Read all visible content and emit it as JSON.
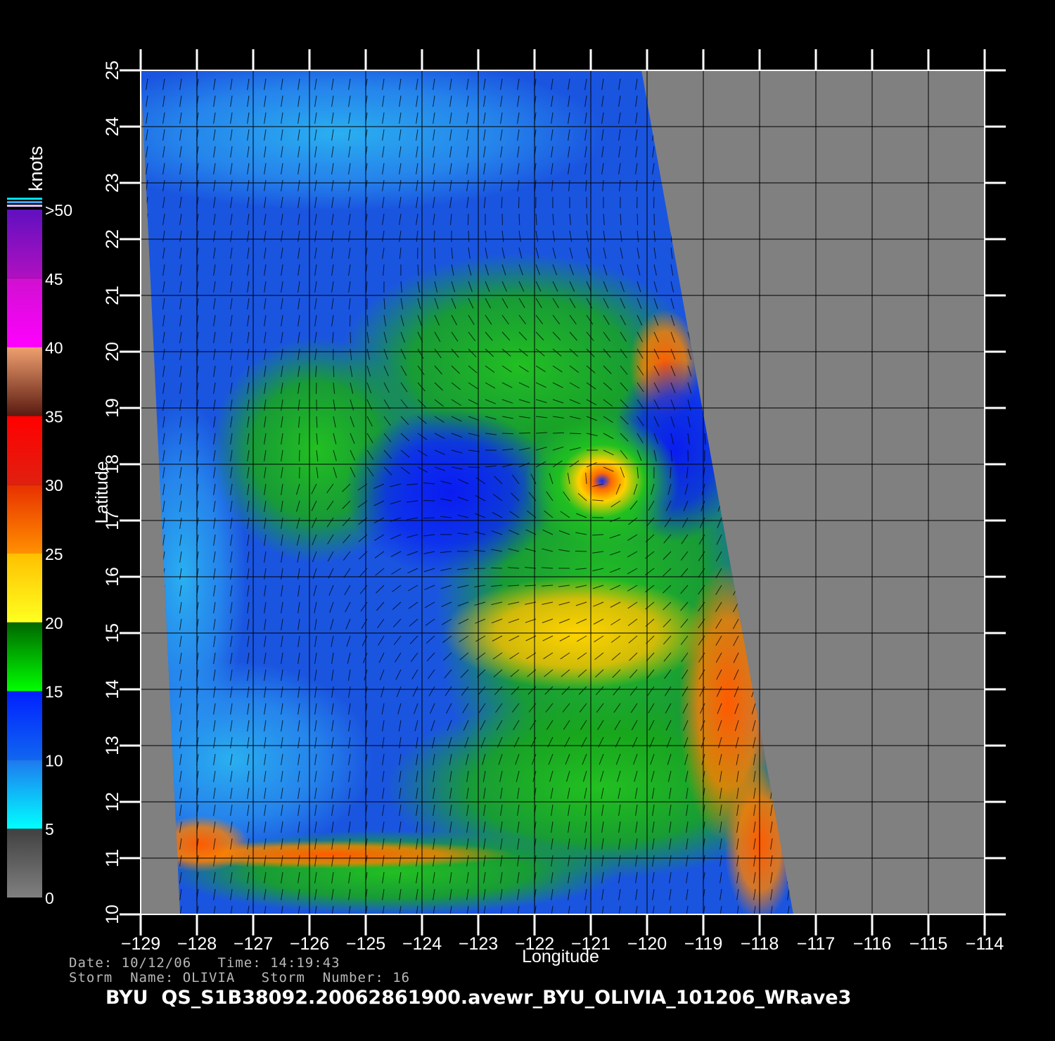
{
  "map": {
    "extent": {
      "lon_min": -129,
      "lon_max": -114,
      "lat_min": 10,
      "lat_max": 25
    },
    "swath_east_edge": [
      [
        -120.1,
        25
      ],
      [
        -117.4,
        10
      ]
    ],
    "swath_west_edge": [
      [
        -129,
        25
      ],
      [
        -128.3,
        10
      ]
    ],
    "ocean_fill_color": "#1a55e0",
    "nodata_color": "#808080",
    "grid_color": "#000000",
    "storm_center": {
      "lon": -120.8,
      "lat": 17.7
    },
    "xlabel": "Longitude",
    "ylabel": "Latitude",
    "x_ticks": [
      "−129",
      "−128",
      "−127",
      "−126",
      "−125",
      "−124",
      "−123",
      "−122",
      "−121",
      "−120",
      "−119",
      "−118",
      "−117",
      "−116",
      "−115",
      "−114"
    ],
    "y_ticks": [
      "10",
      "11",
      "12",
      "13",
      "14",
      "15",
      "16",
      "17",
      "18",
      "19",
      "20",
      "21",
      "22",
      "23",
      "24",
      "25"
    ]
  },
  "colorbar": {
    "unit": "knots",
    "labels": [
      {
        "value": 0,
        "text": "0"
      },
      {
        "value": 5,
        "text": "5"
      },
      {
        "value": 10,
        "text": "10"
      },
      {
        "value": 15,
        "text": "15"
      },
      {
        "value": 20,
        "text": "20"
      },
      {
        "value": 25,
        "text": "25"
      },
      {
        "value": 30,
        "text": "30"
      },
      {
        "value": 35,
        "text": "35"
      },
      {
        "value": 40,
        "text": "40"
      },
      {
        "value": 45,
        "text": "45"
      },
      {
        "value": 50,
        "text": ">50"
      }
    ],
    "bands": [
      {
        "from": 0,
        "to": 5,
        "top": "#404040",
        "bottom": "#808080"
      },
      {
        "from": 5,
        "to": 10,
        "top": "#1e78f0",
        "bottom": "#00ffff"
      },
      {
        "from": 10,
        "to": 15,
        "top": "#0020ff",
        "bottom": "#1066f0"
      },
      {
        "from": 15,
        "to": 20,
        "top": "#006600",
        "bottom": "#00ff00"
      },
      {
        "from": 20,
        "to": 25,
        "top": "#ffc000",
        "bottom": "#ffff20"
      },
      {
        "from": 25,
        "to": 30,
        "top": "#e83000",
        "bottom": "#ff9000"
      },
      {
        "from": 30,
        "to": 35,
        "top": "#ff0000",
        "bottom": "#e02010"
      },
      {
        "from": 35,
        "to": 40,
        "top": "#f0a070",
        "bottom": "#5a1a10"
      },
      {
        "from": 40,
        "to": 45,
        "top": "#d010d0",
        "bottom": "#ff00ff"
      },
      {
        "from": 45,
        "to": 50,
        "top": "#6010c0",
        "bottom": "#b010c0"
      }
    ]
  },
  "meta": {
    "line1": "Date: 10/12/06   Time: 14:19:43",
    "line2": "Storm  Name: OLIVIA   Storm  Number: 16",
    "title": "BYU  QS_S1B38092.20062861900.avewr_BYU_OLIVIA_101206_WRave3"
  }
}
